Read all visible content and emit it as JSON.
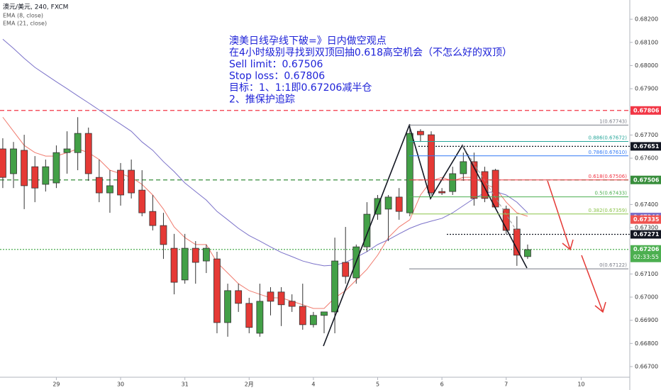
{
  "chart_data": {
    "type": "candlestick",
    "title": "澳元/美元, 240, FXCM",
    "x": [
      0,
      1,
      2,
      3,
      4,
      5,
      6,
      7,
      8,
      9,
      10,
      11,
      12,
      13,
      14,
      15,
      16,
      17,
      18,
      19,
      20,
      21,
      22,
      23,
      24,
      25,
      26,
      27,
      28,
      29,
      30,
      31,
      32,
      33,
      34,
      35,
      36,
      37,
      38,
      39,
      40,
      41,
      42,
      43,
      44,
      45,
      46,
      47,
      48,
      49
    ],
    "open": [
      0.6764,
      0.67533,
      0.67634,
      0.67563,
      0.67487,
      0.67493,
      0.67624,
      0.67624,
      0.67707,
      0.67517,
      0.6745,
      0.67548,
      0.67548,
      0.67462,
      0.6737,
      0.67309,
      0.67211,
      0.67074,
      0.67211,
      0.67156,
      0.67165,
      0.6689,
      0.67028,
      0.66973,
      0.66844,
      0.67022,
      0.67022,
      0.66982,
      0.6696,
      0.66881,
      0.66921,
      0.66936,
      0.6715,
      0.67083,
      0.67217,
      0.67358,
      0.6738,
      0.67432,
      0.67364,
      0.67716,
      0.67701,
      0.67456,
      0.67456,
      0.67533,
      0.67585,
      0.67542,
      0.67548,
      0.6738,
      0.67294,
      0.67175
    ],
    "high": [
      0.67686,
      0.6767,
      0.67701,
      0.67609,
      0.67594,
      0.67655,
      0.67716,
      0.67777,
      0.67732,
      0.67594,
      0.67548,
      0.67579,
      0.67594,
      0.67548,
      0.67441,
      0.67364,
      0.67273,
      0.67273,
      0.67242,
      0.67227,
      0.67196,
      0.67058,
      0.67058,
      0.66997,
      0.67058,
      0.67043,
      0.67043,
      0.67012,
      0.67058,
      0.66936,
      0.66936,
      0.67257,
      0.67303,
      0.67227,
      0.6741,
      0.67441,
      0.67441,
      0.67471,
      0.67747,
      0.67725,
      0.67716,
      0.67471,
      0.67563,
      0.67624,
      0.67624,
      0.67563,
      0.67554,
      0.67395,
      0.67349,
      0.67227
    ],
    "low": [
      0.67471,
      0.67471,
      0.6738,
      0.6741,
      0.67456,
      0.67471,
      0.67533,
      0.67548,
      0.67502,
      0.6741,
      0.67364,
      0.67395,
      0.67426,
      0.67349,
      0.67288,
      0.67165,
      0.67012,
      0.67058,
      0.67058,
      0.67104,
      0.66844,
      0.66829,
      0.66936,
      0.66844,
      0.66829,
      0.66921,
      0.66875,
      0.66936,
      0.66859,
      0.66869,
      0.66844,
      0.66844,
      0.67058,
      0.67058,
      0.67196,
      0.67334,
      0.67242,
      0.67334,
      0.67349,
      0.6767,
      0.67441,
      0.67441,
      0.67441,
      0.67502,
      0.67395,
      0.6741,
      0.6738,
      0.67273,
      0.67135,
      0.67165
    ],
    "close": [
      0.67517,
      0.6764,
      0.67481,
      0.67471,
      0.67563,
      0.67624,
      0.6764,
      0.67707,
      0.67533,
      0.6745,
      0.67481,
      0.67441,
      0.6745,
      0.67364,
      0.67309,
      0.67227,
      0.67064,
      0.67211,
      0.6715,
      0.67211,
      0.6689,
      0.67028,
      0.66973,
      0.66869,
      0.66982,
      0.66982,
      0.66967,
      0.6696,
      0.66881,
      0.66921,
      0.66936,
      0.67156,
      0.67089,
      0.67217,
      0.67358,
      0.67426,
      0.67432,
      0.6737,
      0.67707,
      0.67701,
      0.6745,
      0.6745,
      0.67533,
      0.67585,
      0.67426,
      0.67426,
      0.67389,
      0.67288,
      0.67181,
      0.67205
    ],
    "up_color": "#43a047",
    "down_color": "#e53935",
    "series": [
      {
        "name": "EMA (8, close)",
        "color": "#f07b6e",
        "values": [
          0.67777,
          0.67716,
          0.67655,
          0.67624,
          0.67609,
          0.67609,
          0.67624,
          0.6764,
          0.67624,
          0.67594,
          0.67548,
          0.67533,
          0.67517,
          0.67487,
          0.67441,
          0.6738,
          0.67303,
          0.67257,
          0.67227,
          0.67227,
          0.6715,
          0.67104,
          0.67058,
          0.67028,
          0.67012,
          0.66997,
          0.66997,
          0.66982,
          0.66967,
          0.66951,
          0.66951,
          0.66997,
          0.67028,
          0.67074,
          0.6712,
          0.67181,
          0.67257,
          0.67303,
          0.67334,
          0.67441,
          0.67502,
          0.67517,
          0.67502,
          0.67517,
          0.67517,
          0.67487,
          0.67471,
          0.6741,
          0.67364,
          0.67349
        ]
      },
      {
        "name": "EMA (21, close)",
        "color": "#7b72c9",
        "values": [
          0.68114,
          0.68074,
          0.68031,
          0.67992,
          0.67961,
          0.6793,
          0.679,
          0.67869,
          0.67839,
          0.67808,
          0.67777,
          0.67747,
          0.67716,
          0.6767,
          0.67634,
          0.67585,
          0.67542,
          0.67493,
          0.67456,
          0.67419,
          0.6737,
          0.67334,
          0.67297,
          0.67266,
          0.67242,
          0.67217,
          0.67193,
          0.67175,
          0.67156,
          0.67144,
          0.67135,
          0.67138,
          0.6715,
          0.67172,
          0.67196,
          0.67227,
          0.67248,
          0.67273,
          0.67297,
          0.67315,
          0.67328,
          0.6734,
          0.67364,
          0.67395,
          0.67426,
          0.6745,
          0.67456,
          0.67441,
          0.6741,
          0.67364
        ]
      }
    ],
    "xlim": [
      -0.26,
      58.54
    ],
    "xticks": [
      {
        "value": 5,
        "label": "29"
      },
      {
        "value": 11,
        "label": "30"
      },
      {
        "value": 17,
        "label": "31"
      },
      {
        "value": 23,
        "label": "2月"
      },
      {
        "value": 29,
        "label": "4"
      },
      {
        "value": 35,
        "label": "5"
      },
      {
        "value": 41,
        "label": "6"
      },
      {
        "value": 47,
        "label": "7"
      },
      {
        "value": 54,
        "label": "10"
      }
    ],
    "ylim": [
      0.66654,
      0.68283
    ],
    "yticks": [
      {
        "value": 0.667,
        "label": "0.66700"
      },
      {
        "value": 0.668,
        "label": "0.66800"
      },
      {
        "value": 0.669,
        "label": "0.66900"
      },
      {
        "value": 0.67,
        "label": "0.67000"
      },
      {
        "value": 0.671,
        "label": "0.67100"
      },
      {
        "value": 0.672,
        "label": "0.67200"
      },
      {
        "value": 0.673,
        "label": "0.67300"
      },
      {
        "value": 0.674,
        "label": "0.67400"
      },
      {
        "value": 0.675,
        "label": "0.67500"
      },
      {
        "value": 0.676,
        "label": "0.67600"
      },
      {
        "value": 0.677,
        "label": "0.67700"
      },
      {
        "value": 0.678,
        "label": "0.67800"
      },
      {
        "value": 0.679,
        "label": "0.67900"
      },
      {
        "value": 0.68,
        "label": "0.68000"
      },
      {
        "value": 0.681,
        "label": "0.68100"
      },
      {
        "value": 0.682,
        "label": "0.68200"
      }
    ],
    "grid": false,
    "price_lines": [
      {
        "value": 0.67806,
        "color": "#f23645",
        "style": "dashed"
      },
      {
        "value": 0.67651,
        "color": "#131722",
        "style": "dotted"
      },
      {
        "value": 0.67506,
        "color": "#388e3c",
        "style": "dashed"
      },
      {
        "value": 0.67346,
        "color": "#7b72c9",
        "style": "none"
      },
      {
        "value": 0.67335,
        "color": "#ef5350",
        "style": "none"
      },
      {
        "value": 0.67271,
        "color": "#131722",
        "style": "dotted"
      },
      {
        "value": 0.67206,
        "color": "#4caf50",
        "style": "dotted"
      }
    ],
    "countdown": "02:33:55",
    "fib_levels": [
      {
        "label": "1(0.67743)",
        "value": 0.67743,
        "color": "#787b86"
      },
      {
        "label": "0.886(0.67672)",
        "value": 0.67672,
        "color": "#26a69a"
      },
      {
        "label": "0.786(0.67610)",
        "value": 0.6761,
        "color": "#3179f5"
      },
      {
        "label": "0.618(0.67506)",
        "value": 0.67506,
        "color": "#f23645"
      },
      {
        "label": "0.5(0.67433)",
        "value": 0.67433,
        "color": "#4caf50"
      },
      {
        "label": "0.382(0.67359)",
        "value": 0.67359,
        "color": "#8bc34a"
      },
      {
        "label": "0(0.67122)",
        "value": 0.67122,
        "color": "#787b86"
      }
    ],
    "annotations": [
      "澳美日线孕线下破=》日内做空观点",
      "在4小时级别寻找到双顶回抽0.618高空机会（不怎么好的双顶）",
      "Sell limit：0.67506",
      "Stop loss：0.67806",
      "目标：1、1:1即0.67206减半仓",
      "2、推保护追踪"
    ]
  }
}
